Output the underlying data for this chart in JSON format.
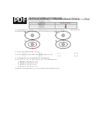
{
  "bg_color": "#ffffff",
  "pdf_bg": "#1a1a1a",
  "title_line1": "PRUEBA PROGRAMA SEMESTRALIDAD",
  "title_line2": "PARTÍCULAS ATÓMICAS Y CONFIGURACIÓN ELECTRÓNICA",
  "title_line3": "Física",
  "header_text": "Para dar cuenta de lo aprendido hasta el día de hoy elabora la representación del bien partículas\nsubatómicas resolviendo las preguntas 1° a 5°",
  "table_col1": "Partícula\nsubatómica",
  "table_col2": "Representación",
  "table_rows": [
    [
      "Electrones",
      "sq",
      "#cc0000"
    ],
    [
      "Protones",
      "sq",
      "#3366cc"
    ],
    [
      "Neutrones",
      "circ",
      "#aaaaaa"
    ]
  ],
  "q1_text": "1. De acuerdo con la tabla, la configuración electrónica del litio es 1s² 2s¹. A continuación\nmuestran representaciones en niveles modelo del átomo de:",
  "atom_labels": [
    "A.",
    "B.",
    "C.",
    "D."
  ],
  "q2_text": "2. ¿Cuál son átomos del litio es:",
  "q2_options": [
    "A. 8",
    "B. 5",
    "C. 3",
    "D. 10"
  ],
  "q3_text": "3. El número de neutrones del átomo del litio es:",
  "q3_options": [
    "A. 3",
    "B. 5",
    "C. 8",
    "D. 10"
  ],
  "q4_text": "4. El elemento con configuración electrónica:",
  "q4_config": "1s² 2s² 2p⁶ 3s² 3p⁶ 4s² 3d¹⁰ 4p⁵ 5s² 4d¹⁰ 5p⁵ pertenece al:",
  "q4_options": [
    "A. Periodo 4, grupo VIII o 10",
    "B. Periodo 5, grupo VIII o 12",
    "C. Periodo 5, grupo VII a 8",
    "D. Periodo 5, grupo VIIA o 7"
  ],
  "footer": "Responde las preguntas 4 y 5 de acuerdo a la siguiente tabla."
}
